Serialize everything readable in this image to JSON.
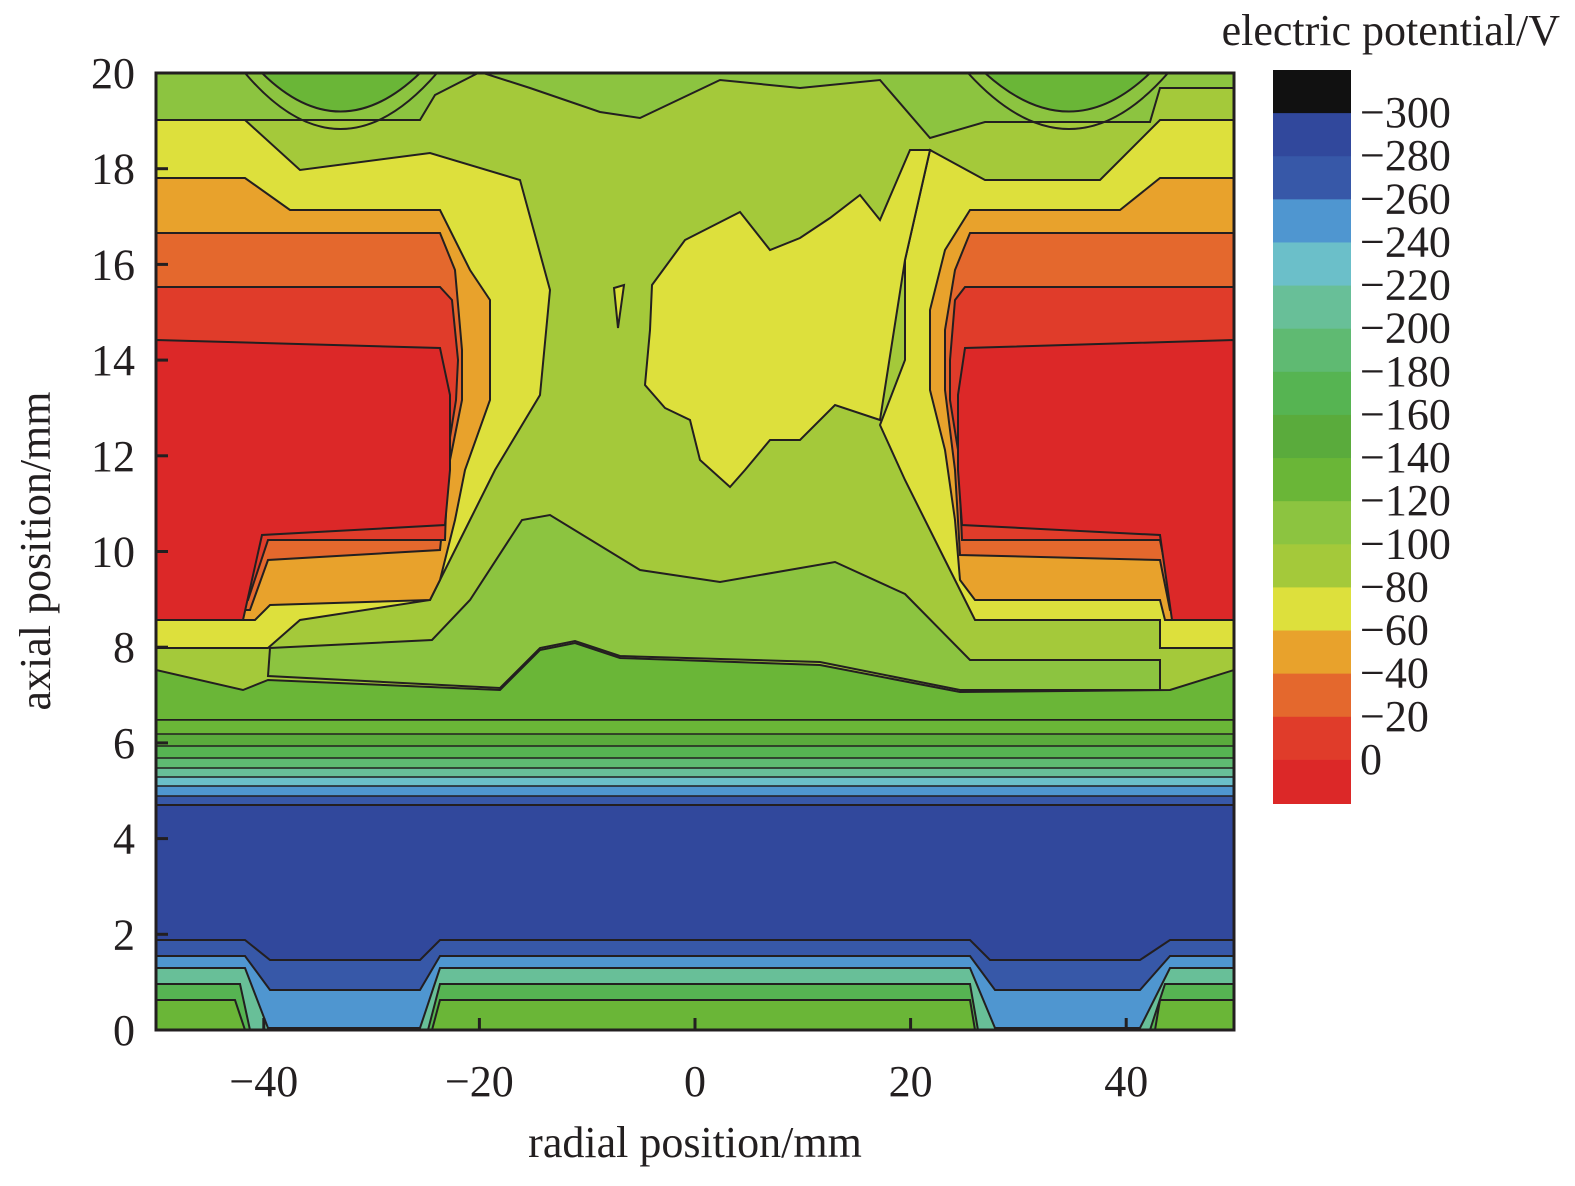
{
  "chart_data": {
    "type": "contour",
    "title": "",
    "xlabel": "radial position/mm",
    "ylabel": "axial position/mm",
    "colorbar_label": "electric potential/V",
    "xlim": [
      -50,
      50
    ],
    "ylim": [
      0,
      20
    ],
    "x_ticks": [
      -40,
      -20,
      0,
      20,
      40
    ],
    "y_ticks": [
      0,
      2,
      4,
      6,
      8,
      10,
      12,
      14,
      16,
      18,
      20
    ],
    "x_tick_labels": [
      "−40",
      "−20",
      "0",
      "20",
      "40"
    ],
    "y_tick_labels": [
      "0",
      "2",
      "4",
      "6",
      "8",
      "10",
      "12",
      "14",
      "16",
      "18",
      "20"
    ],
    "colorbar_levels": [
      {
        "label": "0",
        "value": 0,
        "color": "#dc2828"
      },
      {
        "label": "−20",
        "value": -20,
        "color": "#e03c2a"
      },
      {
        "label": "−40",
        "value": -40,
        "color": "#e4682d"
      },
      {
        "label": "−60",
        "value": -60,
        "color": "#e8a22c"
      },
      {
        "label": "−80",
        "value": -80,
        "color": "#dde03c"
      },
      {
        "label": "−100",
        "value": -100,
        "color": "#a4c93a"
      },
      {
        "label": "−120",
        "value": -120,
        "color": "#8cc440"
      },
      {
        "label": "−140",
        "value": -140,
        "color": "#6ab637"
      },
      {
        "label": "−160",
        "value": -160,
        "color": "#5aab3c"
      },
      {
        "label": "−180",
        "value": -180,
        "color": "#56b452"
      },
      {
        "label": "−200",
        "value": -200,
        "color": "#5fba72"
      },
      {
        "label": "−220",
        "value": -220,
        "color": "#68bf98"
      },
      {
        "label": "−240",
        "value": -240,
        "color": "#6bbfc9"
      },
      {
        "label": "−260",
        "value": -260,
        "color": "#4f96d0"
      },
      {
        "label": "−280",
        "value": -280,
        "color": "#3758a8"
      },
      {
        "label": "−300",
        "value": -300,
        "color": "#31489c"
      }
    ],
    "colorbar_top_color": "#111111",
    "colorbar_top_value": -320,
    "regions": [
      {
        "region": "bottom band",
        "y_range": [
          2,
          4.7
        ],
        "value": -290
      },
      {
        "region": "left electrode core",
        "x_range": [
          -50,
          -23
        ],
        "y_range": [
          8.5,
          14.2
        ],
        "value": -10
      },
      {
        "region": "right electrode core",
        "x_range": [
          25,
          50
        ],
        "y_range": [
          8.5,
          14.2
        ],
        "value": -10
      },
      {
        "region": "central island",
        "x_range": [
          -4,
          21
        ],
        "y_range": [
          11.3,
          16.8
        ],
        "value": -90
      },
      {
        "region": "upper corner wells",
        "y_range": [
          19,
          20
        ],
        "value": -150
      }
    ]
  }
}
